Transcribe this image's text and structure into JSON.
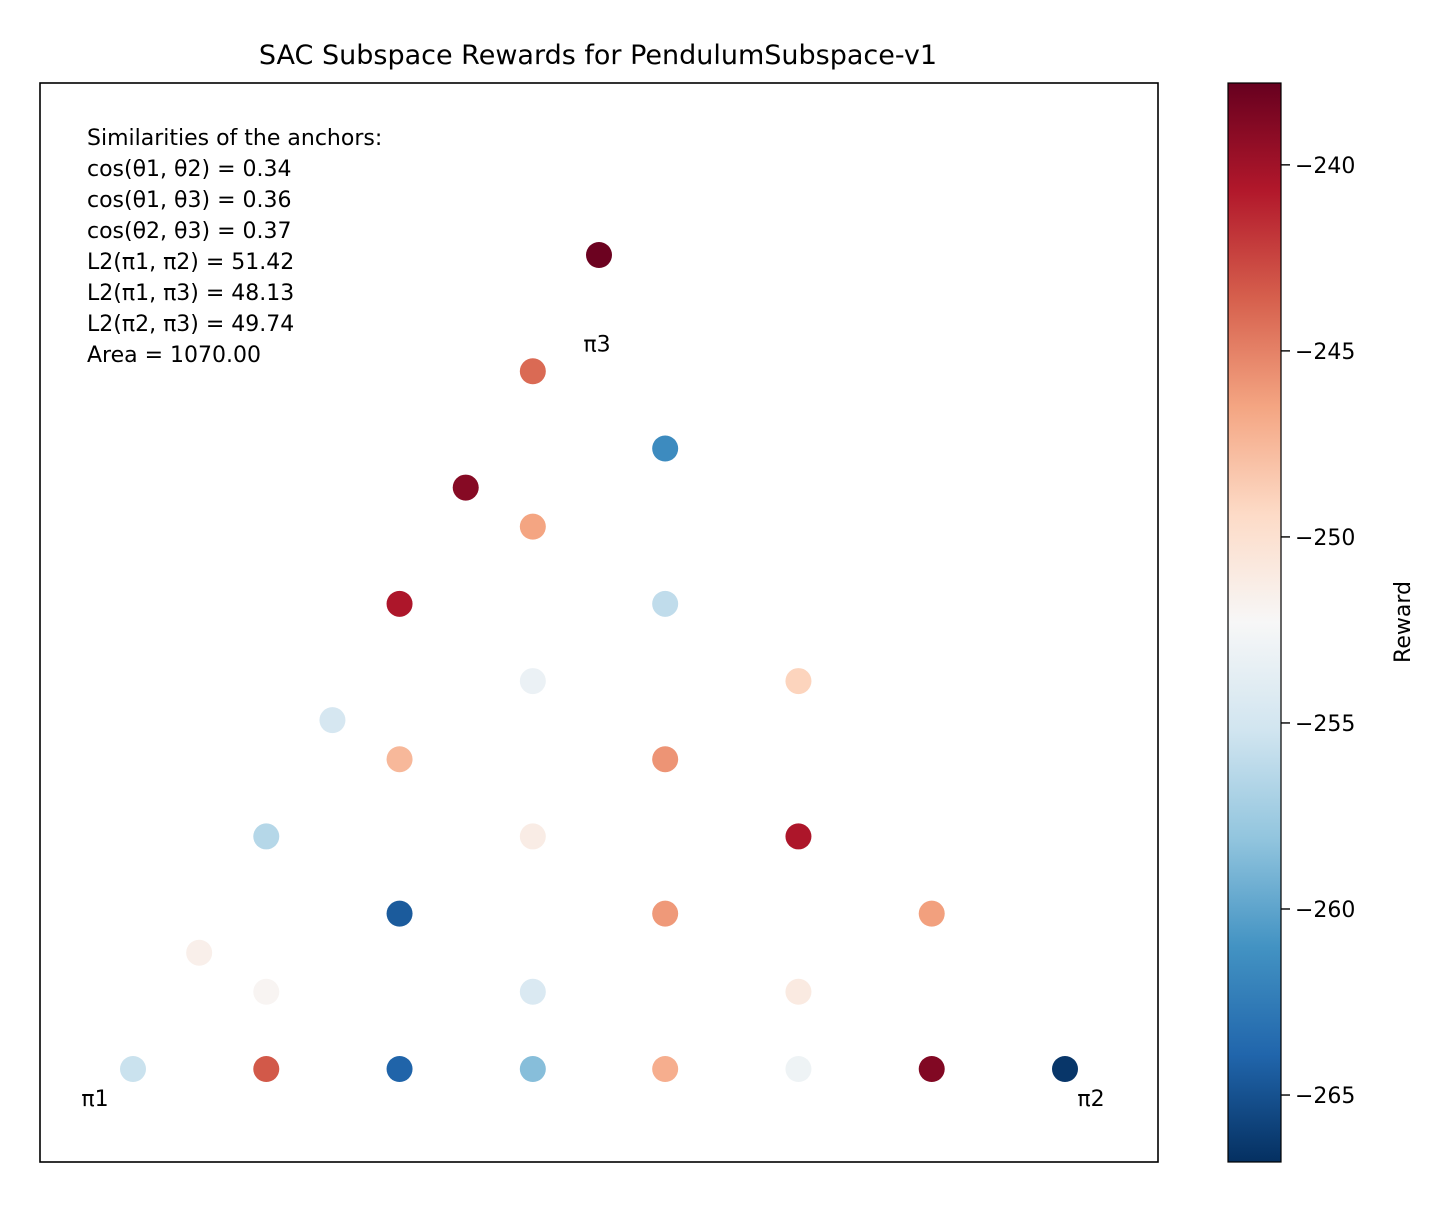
{
  "chart_data": {
    "type": "scatter",
    "title": "SAC Subspace Rewards for PendulumSubspace-v1",
    "xlabel": "",
    "ylabel": "",
    "grid": false,
    "annotation_lines": [
      "Similarities of the anchors:",
      "cos(θ1, θ2) = 0.34",
      "cos(θ1, θ3) = 0.36",
      "cos(θ2, θ3) = 0.37",
      "L2(π1, π2) = 51.42",
      "L2(π1, π3) = 48.13",
      "L2(π2, π3) = 49.74",
      "Area = 1070.00"
    ],
    "anchors": [
      {
        "label": "π1",
        "x": 0.0,
        "y": 0.0
      },
      {
        "label": "π2",
        "x": 1.0,
        "y": 0.0
      },
      {
        "label": "π3",
        "x": 0.5,
        "y": 0.75
      }
    ],
    "points": [
      {
        "x": 0.0,
        "y": 0.0,
        "reward": -255.5
      },
      {
        "x": 0.143,
        "y": 0.0,
        "reward": -243.3
      },
      {
        "x": 0.286,
        "y": 0.0,
        "reward": -264.0
      },
      {
        "x": 0.429,
        "y": 0.0,
        "reward": -258.5
      },
      {
        "x": 0.571,
        "y": 0.0,
        "reward": -247.0
      },
      {
        "x": 0.714,
        "y": 0.0,
        "reward": -253.0
      },
      {
        "x": 0.857,
        "y": 0.0,
        "reward": -238.8
      },
      {
        "x": 1.0,
        "y": 0.0,
        "reward": -266.5
      },
      {
        "x": 0.071,
        "y": 0.125,
        "reward": -251.5
      },
      {
        "x": 0.143,
        "y": 0.083,
        "reward": -252.0
      },
      {
        "x": 0.429,
        "y": 0.083,
        "reward": -254.5
      },
      {
        "x": 0.714,
        "y": 0.083,
        "reward": -251.0
      },
      {
        "x": 0.286,
        "y": 0.167,
        "reward": -264.5
      },
      {
        "x": 0.571,
        "y": 0.167,
        "reward": -246.0
      },
      {
        "x": 0.857,
        "y": 0.167,
        "reward": -246.3
      },
      {
        "x": 0.143,
        "y": 0.25,
        "reward": -256.5
      },
      {
        "x": 0.429,
        "y": 0.25,
        "reward": -251.2
      },
      {
        "x": 0.714,
        "y": 0.25,
        "reward": -240.5
      },
      {
        "x": 0.286,
        "y": 0.333,
        "reward": -247.5
      },
      {
        "x": 0.571,
        "y": 0.333,
        "reward": -245.8
      },
      {
        "x": 0.214,
        "y": 0.375,
        "reward": -254.8
      },
      {
        "x": 0.429,
        "y": 0.417,
        "reward": -253.2
      },
      {
        "x": 0.714,
        "y": 0.417,
        "reward": -249.0
      },
      {
        "x": 0.286,
        "y": 0.5,
        "reward": -240.5
      },
      {
        "x": 0.571,
        "y": 0.5,
        "reward": -256.0
      },
      {
        "x": 0.429,
        "y": 0.583,
        "reward": -246.5
      },
      {
        "x": 0.357,
        "y": 0.625,
        "reward": -239.0
      },
      {
        "x": 0.571,
        "y": 0.667,
        "reward": -261.5
      },
      {
        "x": 0.429,
        "y": 0.75,
        "reward": -244.0
      },
      {
        "x": 0.5,
        "y": 0.875,
        "reward": -238.0
      }
    ],
    "colorbar": {
      "label": "Reward",
      "min": -266.8,
      "max": -237.8,
      "ticks": [
        -240,
        -245,
        -250,
        -255,
        -260,
        -265
      ],
      "tick_labels": [
        "−240",
        "−245",
        "−250",
        "−255",
        "−260",
        "−265"
      ],
      "colormap": [
        "#67001f",
        "#b2182b",
        "#d6604d",
        "#f4a582",
        "#fddbc7",
        "#f7f7f7",
        "#d1e5f0",
        "#92c5de",
        "#4393c3",
        "#2166ac",
        "#053061"
      ]
    }
  }
}
